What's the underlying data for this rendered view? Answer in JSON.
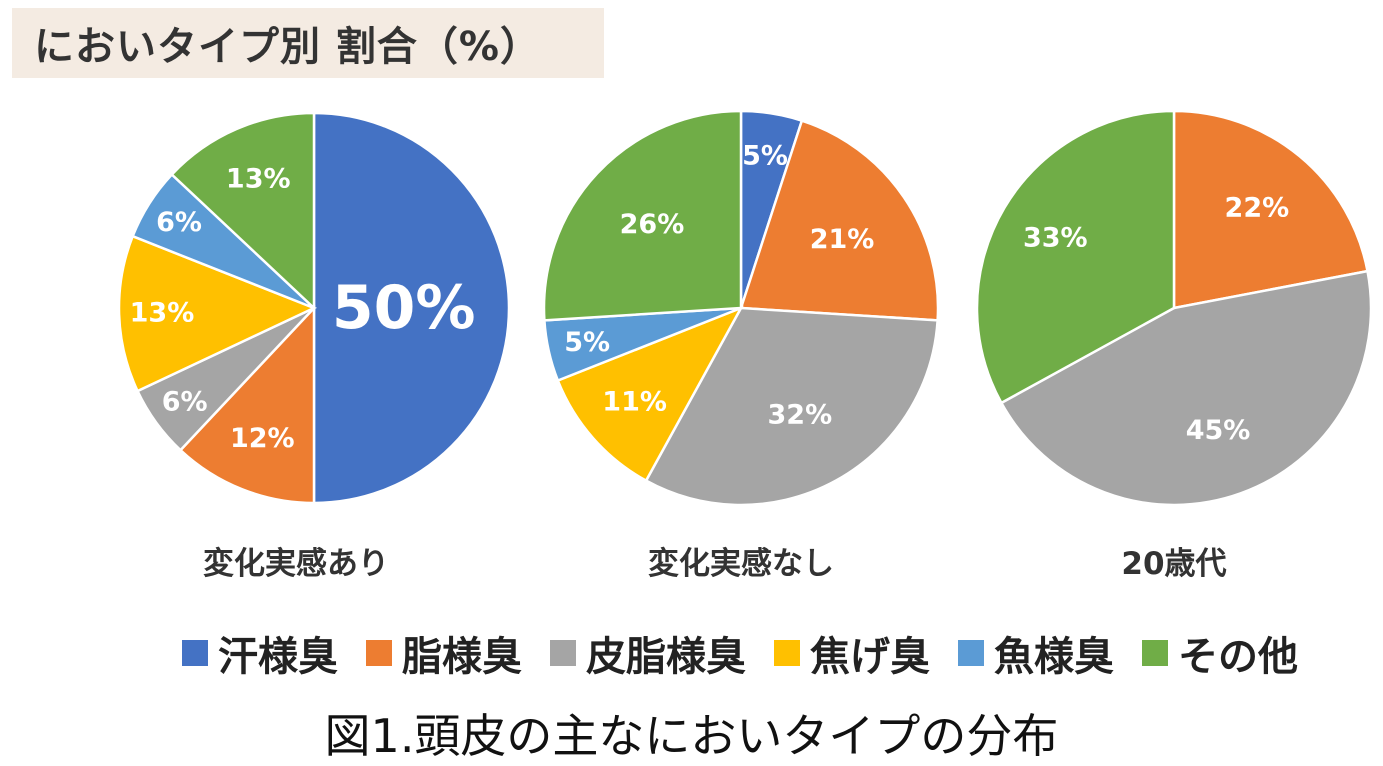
{
  "header": {
    "title": "においタイプ別 割合（%）"
  },
  "legend": [
    {
      "label": "汗様臭",
      "color": "#4472C4"
    },
    {
      "label": "脂様臭",
      "color": "#ED7D31"
    },
    {
      "label": "皮脂様臭",
      "color": "#A5A5A5"
    },
    {
      "label": "焦げ臭",
      "color": "#FFC000"
    },
    {
      "label": "魚様臭",
      "color": "#5B9BD5"
    },
    {
      "label": "その他",
      "color": "#70AD47"
    }
  ],
  "caption": "図1.頭皮の主なにおいタイプの分布",
  "chart_data": [
    {
      "type": "pie",
      "title": "変化実感あり",
      "categories": [
        "汗様臭",
        "脂様臭",
        "皮脂様臭",
        "焦げ臭",
        "魚様臭",
        "その他"
      ],
      "values": [
        50,
        12,
        6,
        13,
        6,
        13
      ],
      "data_labels": [
        "50%",
        "12%",
        "6%",
        "13%",
        "6%",
        "13%"
      ]
    },
    {
      "type": "pie",
      "title": "変化実感なし",
      "categories": [
        "汗様臭",
        "脂様臭",
        "皮脂様臭",
        "焦げ臭",
        "魚様臭",
        "その他"
      ],
      "values": [
        5,
        21,
        32,
        11,
        5,
        26
      ],
      "data_labels": [
        "5%",
        "21%",
        "32%",
        "11%",
        "5%",
        "26%"
      ]
    },
    {
      "type": "pie",
      "title": "20歳代",
      "categories": [
        "汗様臭",
        "脂様臭",
        "皮脂様臭",
        "焦げ臭",
        "魚様臭",
        "その他"
      ],
      "values": [
        0,
        22,
        45,
        0,
        0,
        33
      ],
      "data_labels": [
        "",
        "22%",
        "45%",
        "",
        "",
        "33%"
      ]
    }
  ]
}
